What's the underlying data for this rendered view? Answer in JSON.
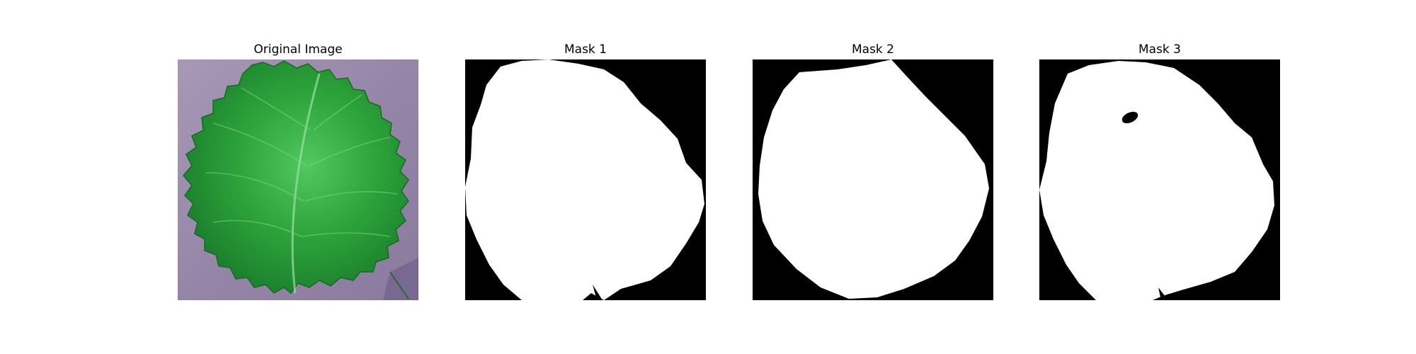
{
  "figure": {
    "panels": [
      {
        "title": "Original Image",
        "kind": "photo",
        "subject": "leaf-photo"
      },
      {
        "title": "Mask 1",
        "kind": "mask"
      },
      {
        "title": "Mask 2",
        "kind": "mask"
      },
      {
        "title": "Mask 3",
        "kind": "mask"
      }
    ],
    "colors": {
      "background": "#ffffff",
      "mask_foreground": "#ffffff",
      "mask_background": "#000000",
      "leaf_dark": "#1f8a2a",
      "leaf_light": "#3fc050",
      "backdrop": "#9a8aa8"
    }
  }
}
